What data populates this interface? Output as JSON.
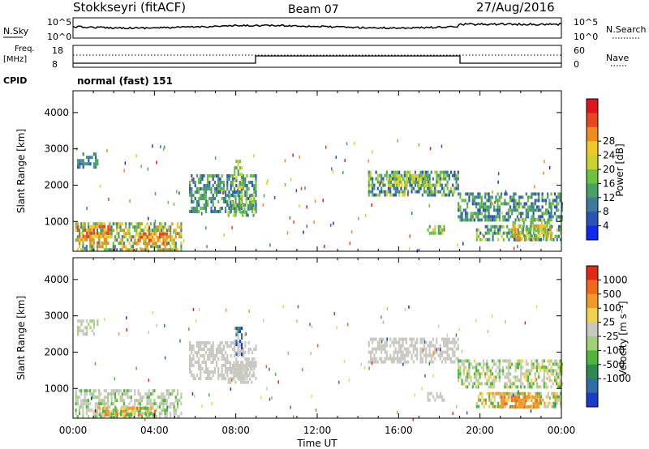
{
  "header": {
    "station": "Stokkseyri (fitACF)",
    "beam": "Beam 07",
    "date": "27/Aug/2016"
  },
  "nsky_panel": {
    "left_label": "N.Sky",
    "right_label": "N.Search",
    "left_ticks": [
      "10^5",
      "10^0"
    ],
    "right_ticks": [
      "10^5",
      "10^0"
    ]
  },
  "freq_panel": {
    "left_label_line1": "Freq.",
    "left_label_line2": "[MHz]",
    "right_label": "Nave",
    "left_ticks": [
      "18",
      "8"
    ],
    "right_ticks": [
      "60",
      "0"
    ],
    "cpid_label": "CPID",
    "mode_text": "normal (fast) 151"
  },
  "time_axis": {
    "label": "Time UT",
    "ticks": [
      "00:00",
      "04:00",
      "08:00",
      "12:00",
      "16:00",
      "20:00",
      "00:00"
    ]
  },
  "chart_data": [
    {
      "type": "heatmap",
      "panel": "power",
      "ylabel": "Slant Range [km]",
      "yticks": [
        1000,
        2000,
        3000,
        4000
      ],
      "ylim": [
        180,
        4600
      ],
      "xlim_hours": [
        0,
        24
      ],
      "colorbar": {
        "label": "Power [dB]",
        "ticks": [
          "4",
          "8",
          "12",
          "16",
          "20",
          "24",
          "28"
        ],
        "colors": [
          "#1028f0",
          "#2a52b8",
          "#3c7aa0",
          "#47a064",
          "#6cc23a",
          "#c8d232",
          "#f0c828",
          "#f08c1e",
          "#e8461e",
          "#e0141e"
        ]
      },
      "regions": [
        {
          "t0": 0.1,
          "t1": 5.3,
          "r0": 260,
          "r1": 980,
          "c": [
            2,
            3,
            4,
            5,
            6,
            7
          ]
        },
        {
          "t0": 0.2,
          "t1": 1.8,
          "r0": 380,
          "r1": 900,
          "c": [
            6,
            7,
            8
          ]
        },
        {
          "t0": 3.0,
          "t1": 4.6,
          "r0": 400,
          "r1": 700,
          "c": [
            6,
            7,
            8
          ]
        },
        {
          "t0": 0.2,
          "t1": 1.2,
          "r0": 2500,
          "r1": 2900,
          "c": [
            1,
            2,
            3
          ]
        },
        {
          "t0": 5.7,
          "t1": 9.0,
          "r0": 1300,
          "r1": 2300,
          "c": [
            1,
            2,
            3,
            4
          ]
        },
        {
          "t0": 7.6,
          "t1": 9.0,
          "r0": 1200,
          "r1": 1750,
          "c": [
            2,
            3,
            4,
            5
          ]
        },
        {
          "t0": 7.9,
          "t1": 8.3,
          "r0": 1900,
          "r1": 2700,
          "c": [
            3,
            4,
            5,
            6
          ]
        },
        {
          "t0": 14.5,
          "t1": 18.9,
          "r0": 1700,
          "r1": 2400,
          "c": [
            1,
            2,
            3,
            4,
            5
          ]
        },
        {
          "t0": 15.5,
          "t1": 17.5,
          "r0": 2000,
          "r1": 2300,
          "c": [
            3,
            4,
            5,
            6
          ]
        },
        {
          "t0": 17.4,
          "t1": 18.2,
          "r0": 700,
          "r1": 900,
          "c": [
            3,
            4,
            5
          ]
        },
        {
          "t0": 18.9,
          "t1": 24.0,
          "r0": 1000,
          "r1": 1800,
          "c": [
            1,
            2,
            3,
            4
          ]
        },
        {
          "t0": 19.8,
          "t1": 24.0,
          "r0": 500,
          "r1": 900,
          "c": [
            1,
            2,
            3,
            4,
            5
          ]
        },
        {
          "t0": 21.5,
          "t1": 23.5,
          "r0": 550,
          "r1": 1100,
          "c": [
            3,
            4,
            5,
            6,
            7
          ]
        }
      ]
    },
    {
      "type": "heatmap",
      "panel": "velocity",
      "ylabel": "Slant Range [km]",
      "yticks": [
        1000,
        2000,
        3000,
        4000
      ],
      "ylim": [
        180,
        4600
      ],
      "xlim_hours": [
        0,
        24
      ],
      "colorbar": {
        "label": "Velocity [m s⁻¹]",
        "ticks": [
          "1000",
          "500",
          "100",
          "25",
          "-25",
          "-100",
          "-500",
          "-1000"
        ],
        "colors": [
          "#1a3cc8",
          "#2e6ea8",
          "#2e8a50",
          "#4eb63a",
          "#a0d078",
          "#c8c8c0",
          "#f0d24e",
          "#f09a28",
          "#f06a1c",
          "#e02a14"
        ]
      },
      "regions": [
        {
          "t0": 0.1,
          "t1": 5.3,
          "r0": 260,
          "r1": 980,
          "c": [
            5,
            5,
            5,
            4,
            3
          ]
        },
        {
          "t0": 1.0,
          "t1": 4.0,
          "r0": 260,
          "r1": 500,
          "c": [
            6,
            7,
            8,
            3
          ]
        },
        {
          "t0": 0.2,
          "t1": 1.2,
          "r0": 2500,
          "r1": 2900,
          "c": [
            5,
            4
          ]
        },
        {
          "t0": 5.7,
          "t1": 9.0,
          "r0": 1300,
          "r1": 2300,
          "c": [
            5,
            5,
            5
          ]
        },
        {
          "t0": 7.6,
          "t1": 9.0,
          "r0": 1200,
          "r1": 1750,
          "c": [
            5,
            5
          ]
        },
        {
          "t0": 7.9,
          "t1": 8.3,
          "r0": 1900,
          "r1": 2700,
          "c": [
            0,
            1,
            2,
            5
          ]
        },
        {
          "t0": 14.5,
          "t1": 18.9,
          "r0": 1700,
          "r1": 2400,
          "c": [
            5,
            5,
            5
          ]
        },
        {
          "t0": 17.4,
          "t1": 18.2,
          "r0": 700,
          "r1": 900,
          "c": [
            5
          ]
        },
        {
          "t0": 18.9,
          "t1": 24.0,
          "r0": 1000,
          "r1": 1800,
          "c": [
            5,
            5,
            4,
            3,
            6
          ]
        },
        {
          "t0": 19.8,
          "t1": 24.0,
          "r0": 500,
          "r1": 900,
          "c": [
            6,
            7,
            5,
            3
          ]
        },
        {
          "t0": 21.0,
          "t1": 23.0,
          "r0": 500,
          "r1": 800,
          "c": [
            7,
            8,
            7
          ]
        }
      ]
    }
  ]
}
